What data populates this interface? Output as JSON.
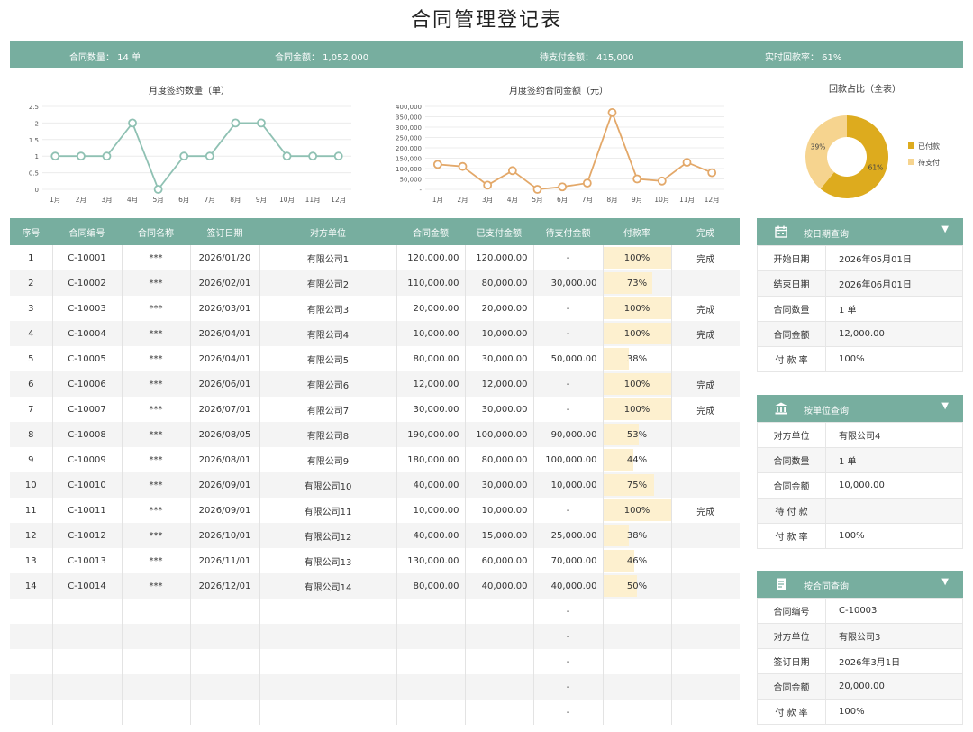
{
  "page": {
    "title": "合同管理登记表"
  },
  "summary": {
    "count": "合同数量： 14 单",
    "amount": "合同金额： 1,052,000",
    "unpaid": "待支付金额： 415,000",
    "rate": "实时回款率： 61%"
  },
  "chart_data": [
    {
      "type": "line",
      "title": "月度签约数量（单）",
      "categories": [
        "1月",
        "2月",
        "3月",
        "4月",
        "5月",
        "6月",
        "7月",
        "8月",
        "9月",
        "10月",
        "11月",
        "12月"
      ],
      "values": [
        1,
        1,
        1,
        2,
        0,
        1,
        1,
        2,
        2,
        1,
        1,
        1
      ],
      "yticks": [
        "0",
        "0.5",
        "1",
        "1.5",
        "2",
        "2.5"
      ],
      "ylim": [
        0,
        2.5
      ],
      "color": "#8fc1b3"
    },
    {
      "type": "line",
      "title": "月度签约合同金额（元）",
      "categories": [
        "1月",
        "2月",
        "3月",
        "4月",
        "5月",
        "6月",
        "7月",
        "8月",
        "9月",
        "10月",
        "11月",
        "12月"
      ],
      "values": [
        120000,
        110000,
        20000,
        90000,
        0,
        12000,
        30000,
        370000,
        50000,
        40000,
        130000,
        80000
      ],
      "yticks": [
        "-",
        "50,000",
        "100,000",
        "150,000",
        "200,000",
        "250,000",
        "300,000",
        "350,000",
        "400,000"
      ],
      "ylim": [
        0,
        400000
      ],
      "color": "#e3a869"
    },
    {
      "type": "pie",
      "title": "回款占比（全表）",
      "slices": [
        {
          "label": "已付款",
          "value": 61,
          "text": "61%",
          "color": "#ddab1e"
        },
        {
          "label": "待支付",
          "value": 39,
          "text": "39%",
          "color": "#f6d48f"
        }
      ]
    }
  ],
  "table": {
    "headers": [
      "序号",
      "合同编号",
      "合同名称",
      "签订日期",
      "对方单位",
      "合同金额",
      "已支付金额",
      "待支付金额",
      "付款率",
      "完成"
    ],
    "rows": [
      [
        "1",
        "C-10001",
        "***",
        "2026/01/20",
        "有限公司1",
        "120,000.00",
        "120,000.00",
        "-",
        "100%",
        "完成"
      ],
      [
        "2",
        "C-10002",
        "***",
        "2026/02/01",
        "有限公司2",
        "110,000.00",
        "80,000.00",
        "30,000.00",
        "73%",
        ""
      ],
      [
        "3",
        "C-10003",
        "***",
        "2026/03/01",
        "有限公司3",
        "20,000.00",
        "20,000.00",
        "-",
        "100%",
        "完成"
      ],
      [
        "4",
        "C-10004",
        "***",
        "2026/04/01",
        "有限公司4",
        "10,000.00",
        "10,000.00",
        "-",
        "100%",
        "完成"
      ],
      [
        "5",
        "C-10005",
        "***",
        "2026/04/01",
        "有限公司5",
        "80,000.00",
        "30,000.00",
        "50,000.00",
        "38%",
        ""
      ],
      [
        "6",
        "C-10006",
        "***",
        "2026/06/01",
        "有限公司6",
        "12,000.00",
        "12,000.00",
        "-",
        "100%",
        "完成"
      ],
      [
        "7",
        "C-10007",
        "***",
        "2026/07/01",
        "有限公司7",
        "30,000.00",
        "30,000.00",
        "-",
        "100%",
        "完成"
      ],
      [
        "8",
        "C-10008",
        "***",
        "2026/08/05",
        "有限公司8",
        "190,000.00",
        "100,000.00",
        "90,000.00",
        "53%",
        ""
      ],
      [
        "9",
        "C-10009",
        "***",
        "2026/08/01",
        "有限公司9",
        "180,000.00",
        "80,000.00",
        "100,000.00",
        "44%",
        ""
      ],
      [
        "10",
        "C-10010",
        "***",
        "2026/09/01",
        "有限公司10",
        "40,000.00",
        "30,000.00",
        "10,000.00",
        "75%",
        ""
      ],
      [
        "11",
        "C-10011",
        "***",
        "2026/09/01",
        "有限公司11",
        "10,000.00",
        "10,000.00",
        "-",
        "100%",
        "完成"
      ],
      [
        "12",
        "C-10012",
        "***",
        "2026/10/01",
        "有限公司12",
        "40,000.00",
        "15,000.00",
        "25,000.00",
        "38%",
        ""
      ],
      [
        "13",
        "C-10013",
        "***",
        "2026/11/01",
        "有限公司13",
        "130,000.00",
        "60,000.00",
        "70,000.00",
        "46%",
        ""
      ],
      [
        "14",
        "C-10014",
        "***",
        "2026/12/01",
        "有限公司14",
        "80,000.00",
        "40,000.00",
        "40,000.00",
        "50%",
        ""
      ],
      [
        "",
        "",
        "",
        "",
        "",
        "",
        "",
        "-",
        "",
        ""
      ],
      [
        "",
        "",
        "",
        "",
        "",
        "",
        "",
        "-",
        "",
        ""
      ],
      [
        "",
        "",
        "",
        "",
        "",
        "",
        "",
        "-",
        "",
        ""
      ],
      [
        "",
        "",
        "",
        "",
        "",
        "",
        "",
        "-",
        "",
        ""
      ],
      [
        "",
        "",
        "",
        "",
        "",
        "",
        "",
        "-",
        "",
        ""
      ]
    ],
    "rates": [
      1.0,
      0.73,
      1.0,
      1.0,
      0.38,
      1.0,
      1.0,
      0.53,
      0.44,
      0.75,
      1.0,
      0.38,
      0.46,
      0.5,
      null,
      null,
      null,
      null,
      null
    ]
  },
  "panels": [
    {
      "title": "按日期查询",
      "icon": "calendar-icon",
      "rows": [
        [
          "开始日期",
          "2026年05月01日"
        ],
        [
          "结束日期",
          "2026年06月01日"
        ],
        [
          "合同数量",
          "1 单"
        ],
        [
          "合同金额",
          "12,000.00"
        ],
        [
          "付 款 率",
          "100%"
        ]
      ]
    },
    {
      "title": "按单位查询",
      "icon": "bank-icon",
      "rows": [
        [
          "对方单位",
          "有限公司4"
        ],
        [
          "合同数量",
          "1 单"
        ],
        [
          "合同金额",
          "10,000.00"
        ],
        [
          "待 付 款",
          ""
        ],
        [
          "付 款 率",
          "100%"
        ]
      ]
    },
    {
      "title": "按合同查询",
      "icon": "document-icon",
      "rows": [
        [
          "合同编号",
          "C-10003"
        ],
        [
          "对方单位",
          "有限公司3"
        ],
        [
          "签订日期",
          "2026年3月1日"
        ],
        [
          "合同金额",
          "20,000.00"
        ],
        [
          "付 款 率",
          "100%"
        ]
      ]
    }
  ],
  "colors": {
    "header": "#77ae9f",
    "rate_bar": "#fdf0cf"
  }
}
